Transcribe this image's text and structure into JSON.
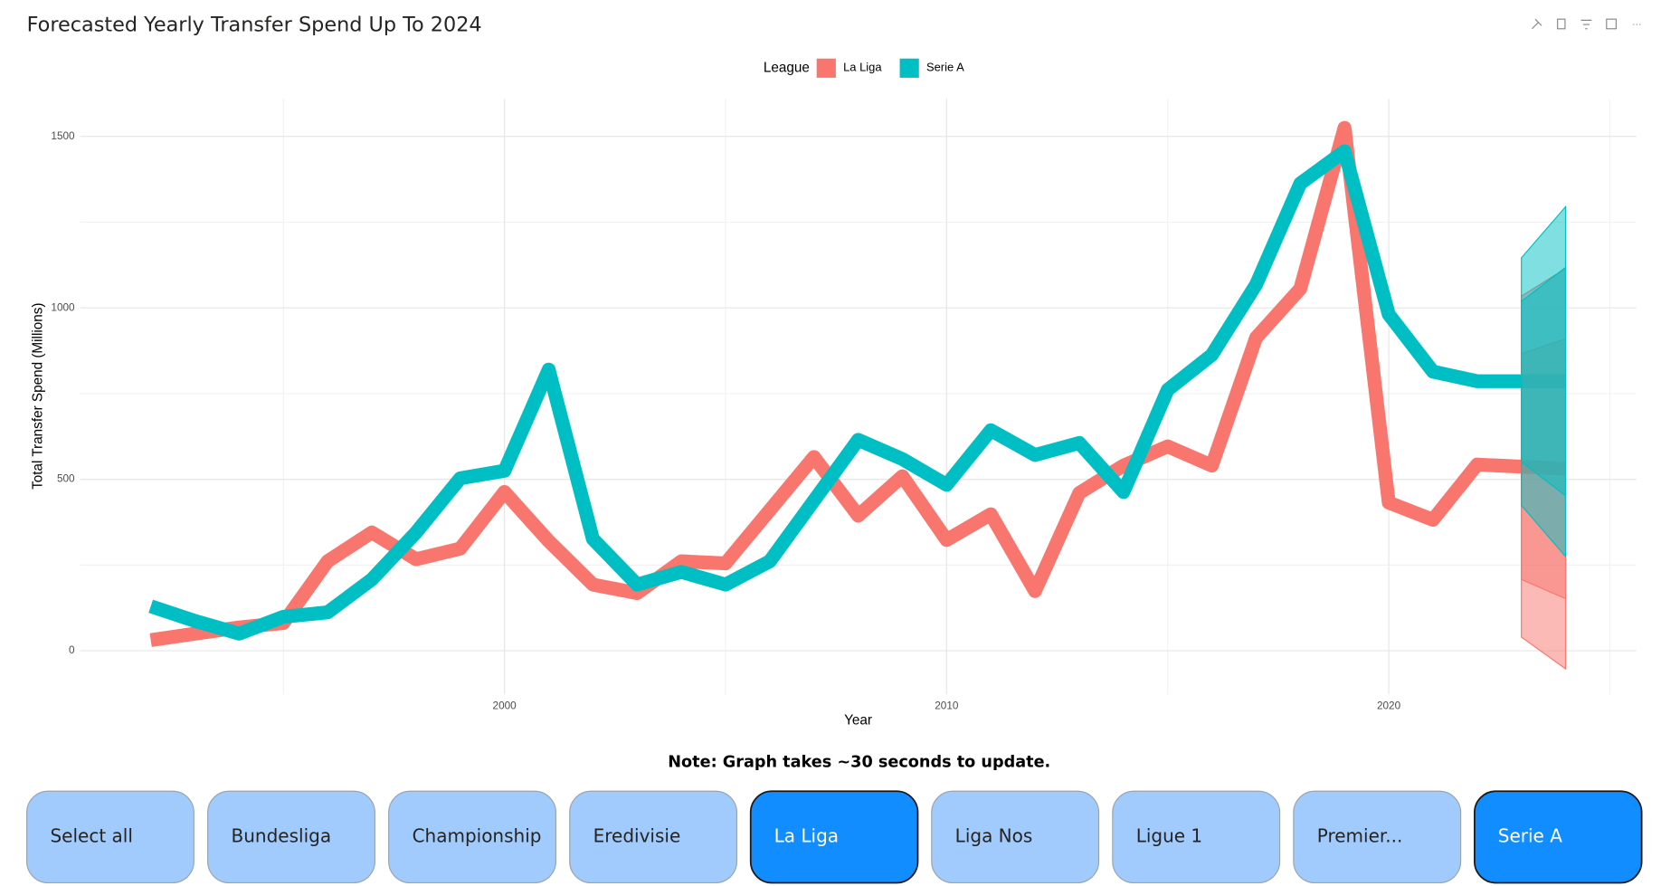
{
  "header": {
    "title": "Forecasted Yearly Transfer Spend Up To 2024"
  },
  "chart_data": {
    "type": "line",
    "legend_title": "League",
    "x_label": "Year",
    "y_label": "Total Transfer Spend (Millions)",
    "x": [
      1992,
      1993,
      1994,
      1995,
      1996,
      1997,
      1998,
      1999,
      2000,
      2001,
      2002,
      2003,
      2004,
      2005,
      2006,
      2007,
      2008,
      2009,
      2010,
      2011,
      2012,
      2013,
      2014,
      2015,
      2016,
      2017,
      2018,
      2019,
      2020,
      2021,
      2022,
      2023,
      2024
    ],
    "series": [
      {
        "name": "La Liga",
        "color": "#f8766d",
        "values": [
          31,
          50,
          68,
          81,
          261,
          345,
          267,
          298,
          463,
          320,
          193,
          168,
          261,
          255,
          410,
          565,
          394,
          509,
          323,
          398,
          174,
          460,
          540,
          596,
          540,
          913,
          1056,
          1525,
          432,
          382,
          543,
          537,
          531
        ],
        "lo95": [
          40,
          -53
        ],
        "lo80": [
          208,
          152
        ],
        "hi80": [
          866,
          910
        ],
        "hi95": [
          1034,
          1115
        ]
      },
      {
        "name": "Serie A",
        "color": "#00bfc4",
        "values": [
          130,
          87,
          50,
          99,
          112,
          208,
          345,
          503,
          525,
          820,
          326,
          193,
          230,
          193,
          261,
          438,
          615,
          559,
          484,
          643,
          571,
          606,
          463,
          761,
          863,
          1068,
          1363,
          1457,
          981,
          814,
          786,
          786,
          786
        ],
        "lo95": [
          424,
          275
        ],
        "lo80": [
          551,
          452
        ],
        "hi80": [
          1019,
          1118
        ],
        "hi95": [
          1146,
          1295
        ]
      }
    ],
    "forecast_x": [
      2023,
      2024
    ],
    "xlim": [
      1990.4,
      2025.6
    ],
    "xticks": [
      2000,
      2010,
      2020
    ],
    "xminor": [
      1995,
      2005,
      2015,
      2025
    ],
    "ylim": [
      -127,
      1609
    ],
    "yticks": [
      0,
      500,
      1000,
      1500
    ],
    "yminor": [
      250,
      750,
      1250
    ],
    "grid": true
  },
  "note": "Note: Graph takes ~30 seconds to update.",
  "buttons": [
    {
      "label": "Select all",
      "selected": false
    },
    {
      "label": "Bundesliga",
      "selected": false
    },
    {
      "label": "Championship",
      "selected": false
    },
    {
      "label": "Eredivisie",
      "selected": false
    },
    {
      "label": "La Liga",
      "selected": true
    },
    {
      "label": "Liga Nos",
      "selected": false
    },
    {
      "label": "Ligue 1",
      "selected": false
    },
    {
      "label": "Premier...",
      "selected": false
    },
    {
      "label": "Serie A",
      "selected": true
    }
  ]
}
